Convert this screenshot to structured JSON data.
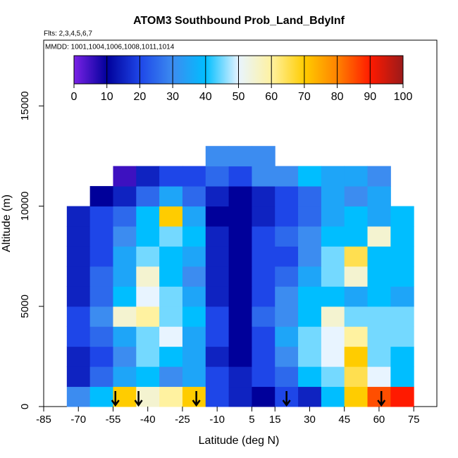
{
  "chart_data": {
    "type": "heatmap",
    "title": "ATOM3 Southbound Prob_Land_BdyInf",
    "flights": "Flts: 2,3,4,5,6,7",
    "dates": "MMDD: 1001,1004,1006,1008,1011,1014",
    "x_label": "Latitude (deg N)",
    "y_label": "Altitude (m)",
    "xlim": [
      -85,
      85
    ],
    "xticks": [
      -85,
      -70,
      -55,
      -40,
      -25,
      -10,
      5,
      15,
      30,
      45,
      60,
      75
    ],
    "ylim": [
      0,
      18280
    ],
    "yticks": [
      0,
      5000,
      10000,
      15000
    ],
    "colorbar_ticks": [
      0,
      10,
      20,
      30,
      40,
      50,
      60,
      70,
      80,
      90,
      100
    ],
    "colorscale": [
      "#7a22e6",
      "#00009a",
      "#1e46e8",
      "#3c8cf0",
      "#00beff",
      "#e8f4ff",
      "#fff2a0",
      "#ffcc00",
      "#ff8200",
      "#ff1a00",
      "#9a1a1a"
    ],
    "xbins": [
      -75,
      -65,
      -55,
      -45,
      -35,
      -25,
      -15,
      -5,
      5,
      15,
      25,
      35,
      45,
      55,
      65,
      75
    ],
    "ybins": [
      0,
      1000,
      2000,
      3000,
      4000,
      5000,
      6000,
      7000,
      8000,
      9000,
      10000,
      11000,
      12000,
      13000
    ],
    "z": [
      [
        30,
        40,
        70,
        55,
        60,
        70,
        20,
        15,
        10,
        20,
        15,
        40,
        70,
        85,
        90
      ],
      [
        15,
        25,
        35,
        40,
        30,
        35,
        20,
        15,
        20,
        25,
        40,
        45,
        65,
        50,
        40
      ],
      [
        15,
        20,
        30,
        45,
        40,
        35,
        15,
        10,
        20,
        30,
        45,
        50,
        70,
        45,
        40
      ],
      [
        20,
        25,
        35,
        45,
        50,
        35,
        20,
        10,
        20,
        35,
        45,
        50,
        60,
        45,
        45
      ],
      [
        20,
        30,
        55,
        60,
        45,
        40,
        20,
        10,
        25,
        30,
        40,
        55,
        45,
        45,
        45
      ],
      [
        15,
        25,
        40,
        50,
        45,
        35,
        15,
        10,
        20,
        30,
        40,
        40,
        35,
        40,
        35
      ],
      [
        15,
        25,
        35,
        55,
        40,
        30,
        15,
        10,
        20,
        25,
        35,
        45,
        55,
        40,
        40
      ],
      [
        15,
        20,
        35,
        45,
        40,
        35,
        15,
        10,
        20,
        20,
        30,
        45,
        65,
        40,
        40
      ],
      [
        15,
        20,
        30,
        40,
        45,
        40,
        15,
        10,
        20,
        25,
        30,
        40,
        40,
        55,
        40
      ],
      [
        15,
        20,
        25,
        40,
        70,
        35,
        10,
        10,
        15,
        20,
        25,
        35,
        40,
        35,
        40
      ],
      [
        null,
        10,
        15,
        25,
        35,
        25,
        15,
        10,
        15,
        20,
        25,
        35,
        30,
        35,
        null
      ],
      [
        null,
        null,
        5,
        15,
        20,
        20,
        25,
        20,
        30,
        30,
        40,
        35,
        35,
        30,
        null
      ],
      [
        null,
        null,
        null,
        null,
        null,
        null,
        30,
        30,
        30,
        null,
        null,
        null,
        null,
        null,
        null
      ]
    ],
    "markers": [
      -54,
      -44,
      -19,
      20,
      61
    ]
  }
}
